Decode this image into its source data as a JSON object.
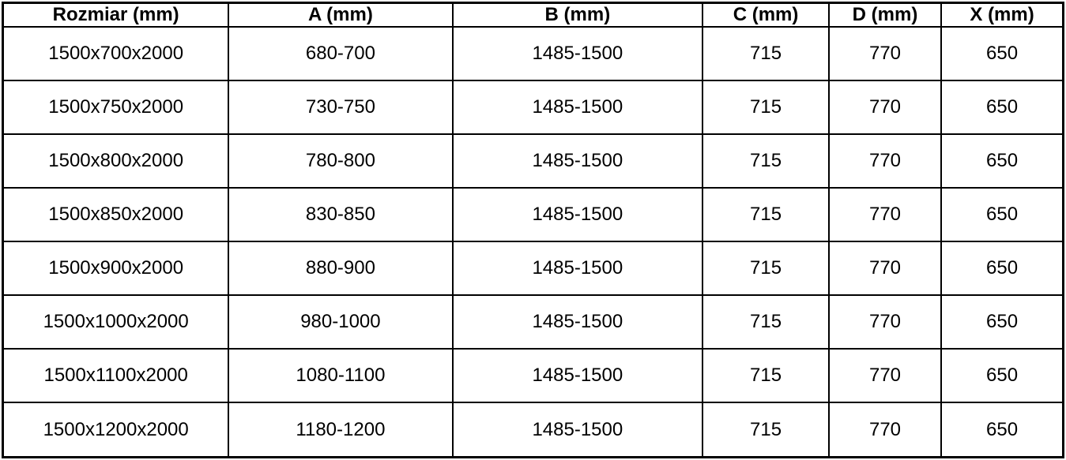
{
  "table": {
    "headers": [
      "Rozmiar (mm)",
      "A (mm)",
      "B (mm)",
      "C (mm)",
      "D (mm)",
      "X (mm)"
    ],
    "rows": [
      [
        "1500x700x2000",
        "680-700",
        "1485-1500",
        "715",
        "770",
        "650"
      ],
      [
        "1500x750x2000",
        "730-750",
        "1485-1500",
        "715",
        "770",
        "650"
      ],
      [
        "1500x800x2000",
        "780-800",
        "1485-1500",
        "715",
        "770",
        "650"
      ],
      [
        "1500x850x2000",
        "830-850",
        "1485-1500",
        "715",
        "770",
        "650"
      ],
      [
        "1500x900x2000",
        "880-900",
        "1485-1500",
        "715",
        "770",
        "650"
      ],
      [
        "1500x1000x2000",
        "980-1000",
        "1485-1500",
        "715",
        "770",
        "650"
      ],
      [
        "1500x1100x2000",
        "1080-1100",
        "1485-1500",
        "715",
        "770",
        "650"
      ],
      [
        "1500x1200x2000",
        "1180-1200",
        "1485-1500",
        "715",
        "770",
        "650"
      ]
    ],
    "colors": {
      "border": "#000000",
      "text": "#000000",
      "background": "#ffffff"
    }
  }
}
